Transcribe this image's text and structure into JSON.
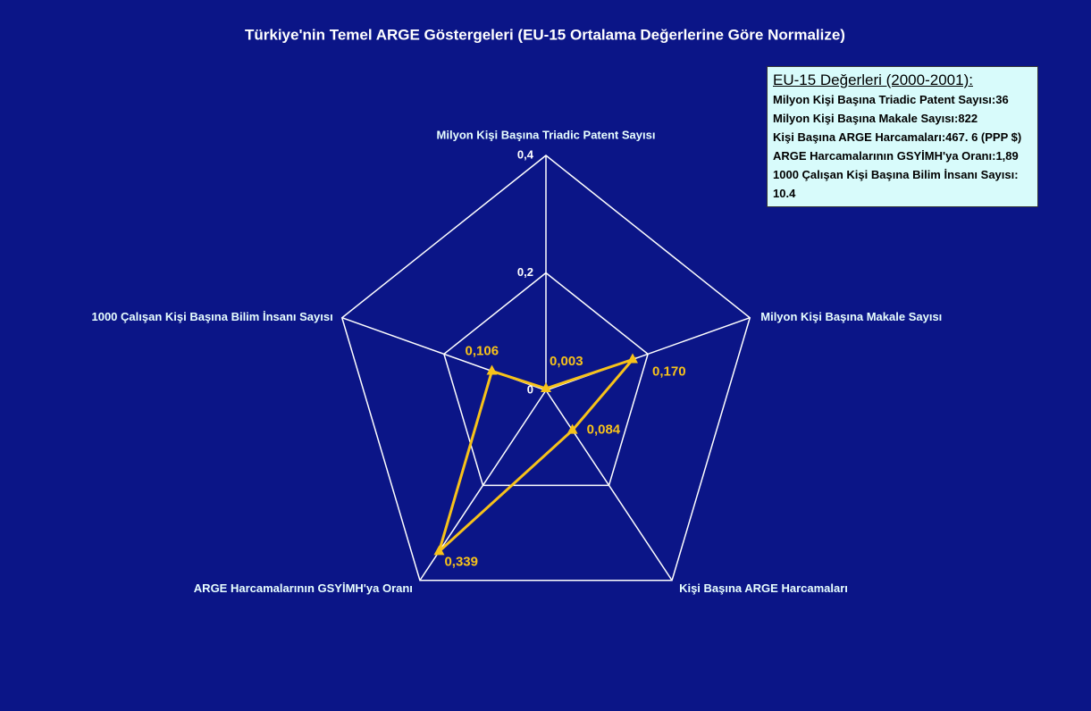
{
  "chart_data": {
    "type": "radar",
    "title": "Türkiye'nin Temel ARGE Göstergeleri (EU-15 Ortalama Değerlerine Göre Normalize)",
    "categories": [
      "Milyon Kişi Başına Triadic Patent Sayısı",
      "Milyon Kişi Başına Makale Sayısı",
      "Kişi Başına ARGE Harcamaları",
      "ARGE Harcamalarının GSYİMH'ya Oranı",
      "1000 Çalışan Kişi Başına Bilim İnsanı Sayısı"
    ],
    "series": [
      {
        "name": "Türkiye",
        "color": "#f7c21a",
        "values": [
          0.003,
          0.17,
          0.084,
          0.339,
          0.106
        ],
        "value_labels": [
          "0,003",
          "0,170",
          "0,084",
          "0,339",
          "0,106"
        ]
      }
    ],
    "rlim": [
      0,
      0.4
    ],
    "rticks": [
      0,
      {
        "value": 0.2,
        "label": "0,2"
      },
      {
        "value": 0.4,
        "label": "0,4"
      }
    ],
    "grid": true,
    "legend": false,
    "annotation": {
      "title": "EU-15 Değerleri (2000-2001):",
      "lines": [
        "Milyon Kişi Başına Triadic Patent Sayısı:36",
        "Milyon Kişi Başına Makale Sayısı:822",
        "Kişi Başına ARGE Harcamaları:467. 6 (PPP $)",
        "ARGE Harcamalarının GSYİMH'ya Oranı:1,89",
        "1000 Çalışan Kişi Başına Bilim İnsanı Sayısı: 10.4"
      ]
    }
  }
}
